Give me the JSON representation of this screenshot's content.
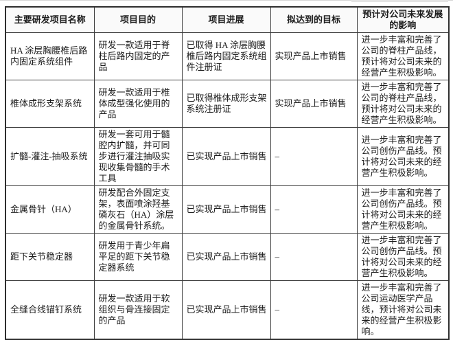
{
  "colors": {
    "border": "#3d3d3d",
    "outer_border": "#2e2e2e",
    "text": "#1c1c1c",
    "header_bg": "#fafafa",
    "page_bg": "#ffffff"
  },
  "table": {
    "columns": [
      "主要研发项目名称",
      "项目目的",
      "项目进展",
      "拟达到的目标",
      "预计对公司未来发展的影响"
    ],
    "rows": [
      {
        "cells": [
          "HA 涂层胸腰椎后路内固定系统组件",
          "研发一款适用于脊柱后路内固定的产品",
          "已取得 HA 涂层胸腰椎后路内固定系统组件注册证",
          "实现产品上市销售",
          "进一步丰富和完善了公司的脊柱产品线，预计将对公司未来的经营产生积极影响。"
        ]
      },
      {
        "cells": [
          "椎体成形支架系统",
          "研发一款适用于椎体成型强化使用的产品",
          "已取得椎体成形支架系统注册证",
          "实现产品上市销售",
          "进一步丰富和完善了公司的脊柱产品线，预计将对公司未来的经营产生积极影响。"
        ]
      },
      {
        "cells": [
          "扩髓-灌注-抽吸系统",
          "研发一套可用于髓腔内扩髓，并可同步进行灌注抽吸实现收集骨髓的手术工具",
          "已实现产品上市销售",
          "–",
          "进一步丰富和完善了公司创伤产品线。预计将对公司未来的经营产生积极影响。"
        ]
      },
      {
        "cells": [
          "金属骨针（HA）",
          "研发配合外固定支架，表面喷涂羟基磷灰石（HA）涂层的金属骨针系统。",
          "已实现产品上市销售",
          "–",
          "进一步丰富和完善了公司创伤产品线。预计将对公司未来的经营产生积极影响。"
        ]
      },
      {
        "cells": [
          "距下关节稳定器",
          "研发用于青少年扁平足的距下关节稳定器系统",
          "已实现产品上市销售",
          "–",
          "进一步丰富和完善了公司创伤产品线。预计将对公司未来的经营产生积极影响。"
        ]
      },
      {
        "cells": [
          "全缝合线锚钉系统",
          "研发一款适用于软组织与骨连接固定的产品",
          "已实现产品上市销售",
          "–",
          "进一步丰富和完善了公司运动医学产品线，预计将对公司未来的经营产生积极影响。"
        ]
      }
    ]
  }
}
